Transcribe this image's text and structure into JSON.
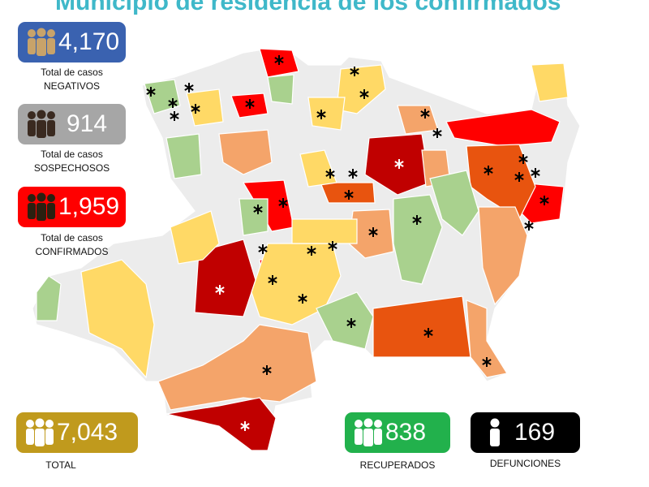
{
  "header": {
    "title": "Municipio de residencia de los confirmados"
  },
  "cards": [
    {
      "value": "4,170",
      "label": [
        "Total de casos",
        "NEGATIVOS"
      ]
    },
    {
      "value": "914",
      "label": [
        "Total de casos",
        "SOSPECHOSOS"
      ]
    },
    {
      "value": "1,959",
      "label": [
        "Total de casos",
        "CONFIRMADOS"
      ]
    },
    {
      "value": "7,043",
      "label": [
        "TOTAL"
      ]
    },
    {
      "value": "838",
      "label": [
        "RECUPERADOS"
      ]
    },
    {
      "value": "169",
      "label": [
        "DEFUNCIONES"
      ]
    }
  ]
}
